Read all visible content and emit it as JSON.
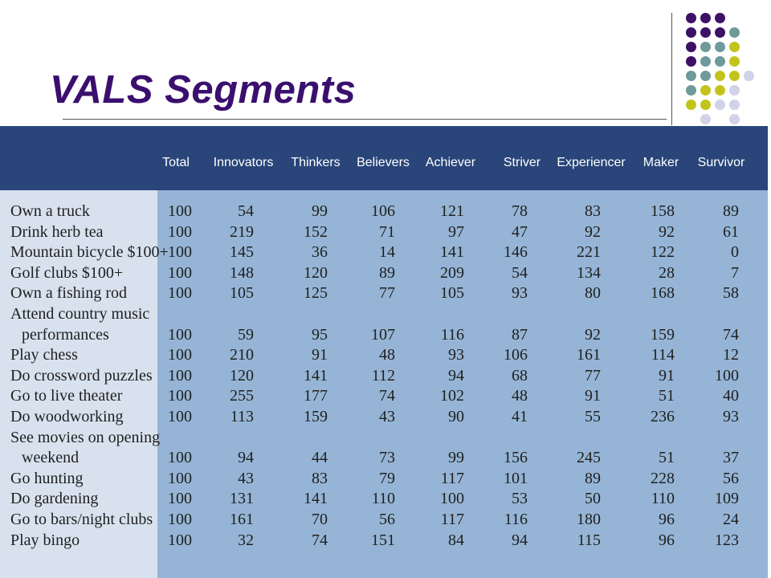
{
  "slide": {
    "title": "VALS Segments"
  },
  "palette": {
    "title": "#3a0f6e",
    "header_bar": "#294579",
    "label_panel": "#d8e2ef",
    "data_panel": "#96b5d6",
    "dot_purple": "#3d1166",
    "dot_teal": "#6e9a9c",
    "dot_lime": "#c3c41b",
    "dot_lavender": "#d0d2e6"
  },
  "table": {
    "columns": [
      "Total",
      "Innovators",
      "Thinkers",
      "Believers",
      "Achiever",
      "Striver",
      "Experiencer",
      "Maker",
      "Survivor"
    ],
    "rows": [
      {
        "label": [
          "Own a truck"
        ],
        "values": [
          "100",
          "54",
          "99",
          "106",
          "121",
          "78",
          "83",
          "158",
          "89"
        ]
      },
      {
        "label": [
          "Drink herb tea"
        ],
        "values": [
          "100",
          "219",
          "152",
          "71",
          "97",
          "47",
          "92",
          "92",
          "61"
        ]
      },
      {
        "label": [
          "Mountain bicycle $100+"
        ],
        "values": [
          "100",
          "145",
          "36",
          "14",
          "141",
          "146",
          "221",
          "122",
          "0"
        ]
      },
      {
        "label": [
          "Golf clubs $100+"
        ],
        "values": [
          "100",
          "148",
          "120",
          "89",
          "209",
          "54",
          "134",
          "28",
          "7"
        ]
      },
      {
        "label": [
          "Own a fishing rod"
        ],
        "values": [
          "100",
          "105",
          "125",
          "77",
          "105",
          "93",
          "80",
          "168",
          "58"
        ]
      },
      {
        "label": [
          "Attend country music",
          "performances"
        ],
        "values": [
          "100",
          "59",
          "95",
          "107",
          "116",
          "87",
          "92",
          "159",
          "74"
        ]
      },
      {
        "label": [
          "Play chess"
        ],
        "values": [
          "100",
          "210",
          "91",
          "48",
          "93",
          "106",
          "161",
          "114",
          "12"
        ]
      },
      {
        "label": [
          "Do crossword puzzles"
        ],
        "values": [
          "100",
          "120",
          "141",
          "112",
          "94",
          "68",
          "77",
          "91",
          "100"
        ]
      },
      {
        "label": [
          "Go to live theater"
        ],
        "values": [
          "100",
          "255",
          "177",
          "74",
          "102",
          "48",
          "91",
          "51",
          "40"
        ]
      },
      {
        "label": [
          "Do woodworking"
        ],
        "values": [
          "100",
          "113",
          "159",
          "43",
          "90",
          "41",
          "55",
          "236",
          "93"
        ]
      },
      {
        "label": [
          "See movies on opening",
          "weekend"
        ],
        "values": [
          "100",
          "94",
          "44",
          "73",
          "99",
          "156",
          "245",
          "51",
          "37"
        ]
      },
      {
        "label": [
          "Go hunting"
        ],
        "values": [
          "100",
          "43",
          "83",
          "79",
          "117",
          "101",
          "89",
          "228",
          "56"
        ]
      },
      {
        "label": [
          "Do gardening"
        ],
        "values": [
          "100",
          "131",
          "141",
          "110",
          "100",
          "53",
          "50",
          "110",
          "109"
        ]
      },
      {
        "label": [
          "Go to bars/night clubs"
        ],
        "values": [
          "100",
          "161",
          "70",
          "56",
          "117",
          "116",
          "180",
          "96",
          "24"
        ]
      },
      {
        "label": [
          "Play bingo"
        ],
        "values": [
          "100",
          "32",
          "74",
          "151",
          "84",
          "94",
          "115",
          "96",
          "123"
        ]
      }
    ]
  }
}
